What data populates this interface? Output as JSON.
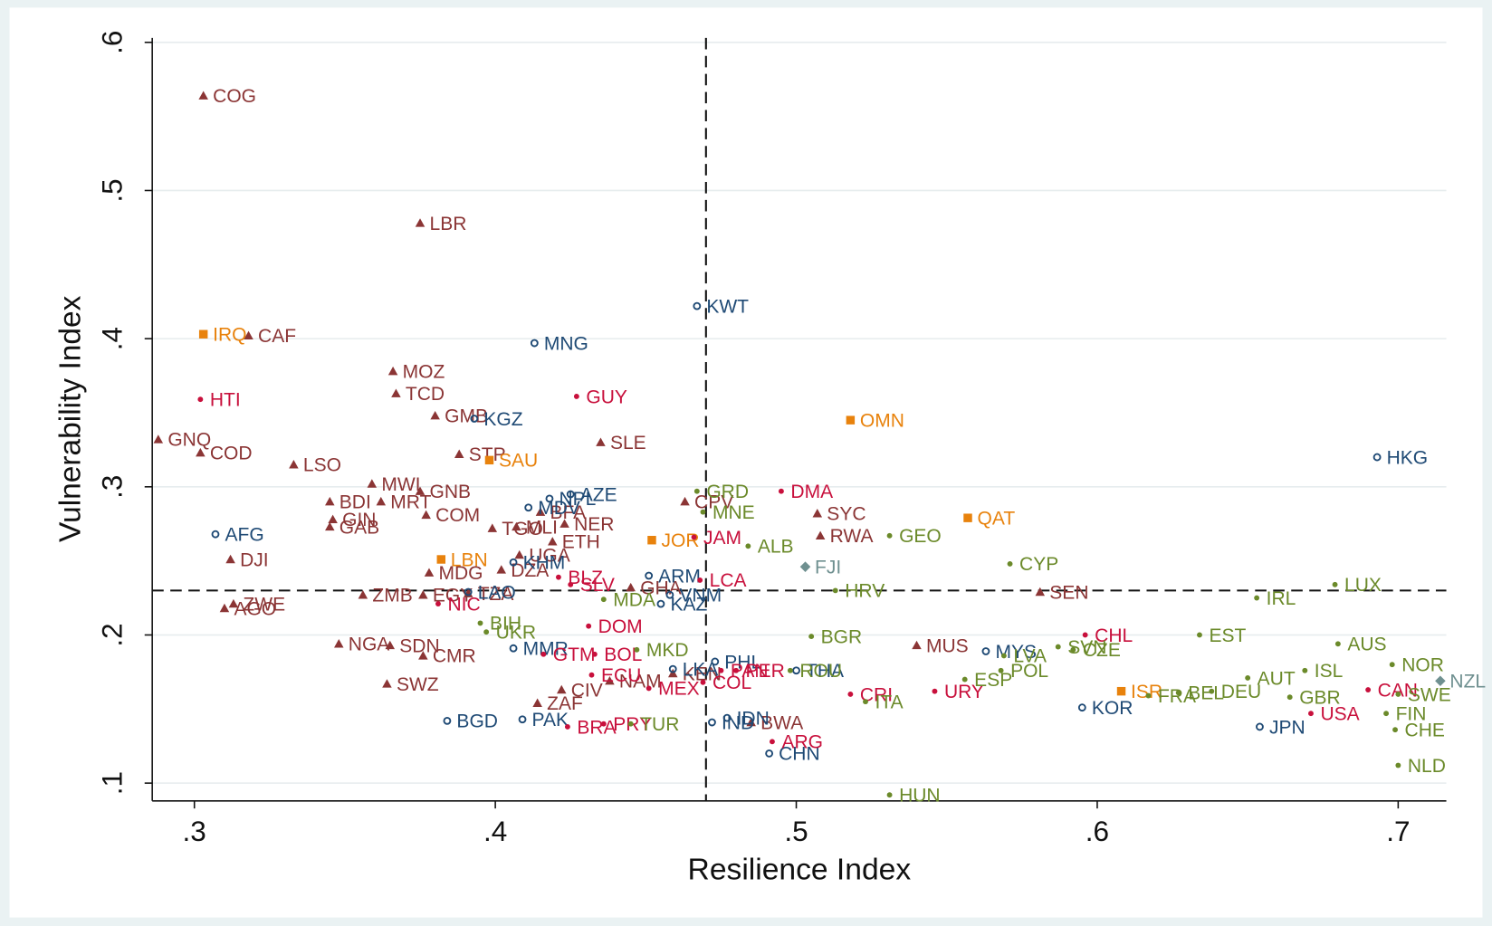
{
  "chart_data": {
    "type": "scatter",
    "x_label": "Resilience Index",
    "y_label": "Vulnerability Index",
    "xlim": [
      0.286,
      0.716
    ],
    "ylim": [
      0.088,
      0.603
    ],
    "xticks": [
      {
        "value": 0.3,
        "label": ".3"
      },
      {
        "value": 0.4,
        "label": ".4"
      },
      {
        "value": 0.5,
        "label": ".5"
      },
      {
        "value": 0.6,
        "label": ".6"
      },
      {
        "value": 0.7,
        "label": ".7"
      }
    ],
    "yticks": [
      {
        "value": 0.1,
        "label": ".1"
      },
      {
        "value": 0.2,
        "label": ".2"
      },
      {
        "value": 0.3,
        "label": ".3"
      },
      {
        "value": 0.4,
        "label": ".4"
      },
      {
        "value": 0.5,
        "label": ".5"
      },
      {
        "value": 0.6,
        "label": ".6"
      }
    ],
    "xline": 0.47,
    "yline": 0.23,
    "grid": true,
    "series": [
      {
        "marker": "triangle",
        "color": "#8b3535",
        "labels": [
          "COG",
          "LBR",
          "CAF",
          "MOZ",
          "TCD",
          "GMB",
          "STP",
          "SLE",
          "GNQ",
          "COD",
          "LSO",
          "MWI",
          "GNB",
          "BDI",
          "MRT",
          "COM",
          "GIN",
          "GAB",
          "TGO",
          "MLI",
          "NER",
          "BFA",
          "ETH",
          "UGA",
          "DZA",
          "MDG",
          "DJI",
          "ZMB",
          "EGY",
          "TZA",
          "ZWE",
          "AGO",
          "NGA",
          "SDN",
          "CMR",
          "SWZ",
          "CIV",
          "ZAF",
          "SYC",
          "RWA",
          "SEN",
          "MUS",
          "GHA",
          "CPV",
          "NAM",
          "KEN",
          "BWA"
        ],
        "x": [
          0.303,
          0.375,
          0.318,
          0.366,
          0.367,
          0.38,
          0.388,
          0.435,
          0.288,
          0.302,
          0.333,
          0.359,
          0.375,
          0.345,
          0.362,
          0.377,
          0.346,
          0.345,
          0.399,
          0.407,
          0.423,
          0.415,
          0.419,
          0.408,
          0.402,
          0.378,
          0.312,
          0.356,
          0.376,
          0.391,
          0.313,
          0.31,
          0.348,
          0.365,
          0.376,
          0.364,
          0.422,
          0.414,
          0.507,
          0.508,
          0.581,
          0.54,
          0.445,
          0.463,
          0.438,
          0.459,
          0.485
        ],
        "y": [
          0.564,
          0.478,
          0.402,
          0.378,
          0.363,
          0.348,
          0.322,
          0.33,
          0.332,
          0.323,
          0.315,
          0.302,
          0.297,
          0.29,
          0.29,
          0.281,
          0.278,
          0.273,
          0.272,
          0.273,
          0.275,
          0.283,
          0.263,
          0.254,
          0.244,
          0.242,
          0.251,
          0.227,
          0.227,
          0.228,
          0.221,
          0.218,
          0.194,
          0.193,
          0.186,
          0.167,
          0.163,
          0.154,
          0.282,
          0.267,
          0.229,
          0.193,
          0.232,
          0.29,
          0.169,
          0.174,
          0.141
        ]
      },
      {
        "marker": "circle",
        "color": "#1f4a75",
        "labels": [
          "KWT",
          "MNG",
          "HKG",
          "KGZ",
          "NPL",
          "AZE",
          "MDV",
          "AFG",
          "KHM",
          "ARM",
          "LAO",
          "VNM",
          "KAZ",
          "MMR",
          "BGD",
          "PAK",
          "IND",
          "IDN",
          "CHN",
          "PHL",
          "LKA",
          "THA",
          "MYS",
          "KOR",
          "JPN"
        ],
        "x": [
          0.467,
          0.413,
          0.693,
          0.393,
          0.418,
          0.425,
          0.411,
          0.307,
          0.406,
          0.451,
          0.391,
          0.458,
          0.455,
          0.406,
          0.384,
          0.409,
          0.472,
          0.477,
          0.491,
          0.473,
          0.459,
          0.5,
          0.563,
          0.595,
          0.654
        ],
        "y": [
          0.422,
          0.397,
          0.32,
          0.346,
          0.292,
          0.295,
          0.286,
          0.268,
          0.249,
          0.24,
          0.229,
          0.227,
          0.221,
          0.191,
          0.142,
          0.143,
          0.141,
          0.144,
          0.12,
          0.182,
          0.177,
          0.176,
          0.189,
          0.151,
          0.138
        ]
      },
      {
        "marker": "square",
        "color": "#e8820c",
        "labels": [
          "IRQ",
          "OMN",
          "SAU",
          "QAT",
          "JOR",
          "LBN",
          "ISR"
        ],
        "x": [
          0.303,
          0.518,
          0.398,
          0.557,
          0.452,
          0.382,
          0.608
        ],
        "y": [
          0.403,
          0.345,
          0.318,
          0.279,
          0.264,
          0.251,
          0.162
        ]
      },
      {
        "marker": "dot",
        "color": "#c8103c",
        "labels": [
          "HTI",
          "GUY",
          "DMA",
          "JAM",
          "LCA",
          "BLZ",
          "SLV",
          "NIC",
          "DOM",
          "GTM",
          "BOL",
          "PAN",
          "PER",
          "ECU",
          "MEX",
          "COL",
          "CRI",
          "URY",
          "CHL",
          "BRA",
          "PRY",
          "ARG",
          "USA",
          "CAN"
        ],
        "x": [
          0.302,
          0.427,
          0.495,
          0.466,
          0.468,
          0.421,
          0.425,
          0.381,
          0.431,
          0.416,
          0.433,
          0.475,
          0.48,
          0.432,
          0.451,
          0.469,
          0.518,
          0.546,
          0.596,
          0.424,
          0.436,
          0.492,
          0.671,
          0.69
        ],
        "y": [
          0.359,
          0.361,
          0.297,
          0.266,
          0.237,
          0.239,
          0.234,
          0.221,
          0.206,
          0.187,
          0.187,
          0.176,
          0.176,
          0.173,
          0.164,
          0.168,
          0.16,
          0.162,
          0.2,
          0.138,
          0.14,
          0.128,
          0.147,
          0.163
        ]
      },
      {
        "marker": "dot",
        "color": "#6b8a2a",
        "labels": [
          "GRD",
          "MNE",
          "ALB",
          "GEO",
          "CYP",
          "HRV",
          "LUX",
          "IRL",
          "EST",
          "AUS",
          "BGR",
          "NOR",
          "ISL",
          "AUT",
          "DEU",
          "GBR",
          "SWE",
          "FIN",
          "CHE",
          "NLD",
          "FRA",
          "BEL",
          "POL",
          "LVA",
          "CZE",
          "SVN",
          "ESP",
          "ITA",
          "HUN",
          "UKR",
          "BIH",
          "MDA",
          "MKD",
          "TUR",
          "ROU"
        ],
        "x": [
          0.467,
          0.469,
          0.484,
          0.531,
          0.571,
          0.513,
          0.679,
          0.653,
          0.634,
          0.68,
          0.505,
          0.698,
          0.669,
          0.65,
          0.638,
          0.664,
          0.7,
          0.696,
          0.699,
          0.7,
          0.617,
          0.627,
          0.568,
          0.569,
          0.592,
          0.587,
          0.556,
          0.523,
          0.531,
          0.397,
          0.395,
          0.436,
          0.447,
          0.445,
          0.498
        ],
        "y": [
          0.297,
          0.283,
          0.26,
          0.267,
          0.248,
          0.23,
          0.234,
          0.225,
          0.2,
          0.194,
          0.199,
          0.18,
          0.176,
          0.171,
          0.162,
          0.158,
          0.16,
          0.147,
          0.136,
          0.112,
          0.159,
          0.161,
          0.176,
          0.186,
          0.19,
          0.192,
          0.17,
          0.155,
          0.092,
          0.202,
          0.208,
          0.224,
          0.19,
          0.14,
          0.176
        ]
      },
      {
        "marker": "diamond",
        "color": "#6f9090",
        "labels": [
          "FJI",
          "NZL"
        ],
        "x": [
          0.503,
          0.714
        ],
        "y": [
          0.246,
          0.169
        ]
      }
    ]
  }
}
